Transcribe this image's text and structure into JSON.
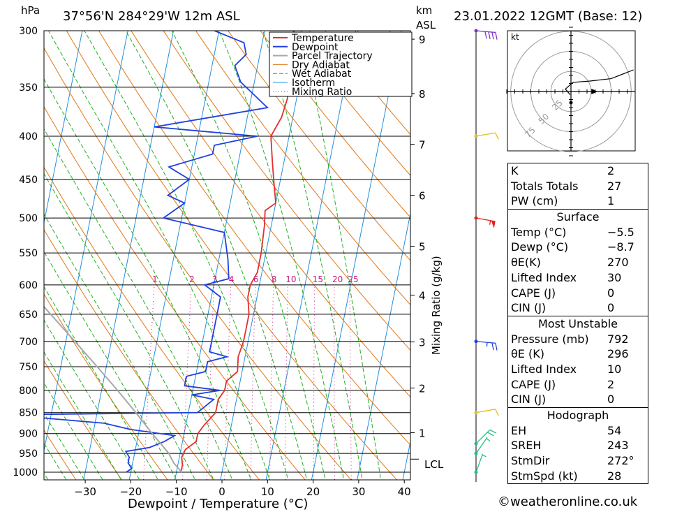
{
  "header": {
    "location": "37°56'N  284°29'W  12m  ASL",
    "datetime": "23.01.2022  12GMT  (Base: 12)",
    "pressure_unit": "hPa",
    "km_unit": "km",
    "asl_unit": "ASL"
  },
  "footer": {
    "credit": "©weatheronline.co.uk"
  },
  "chart_data": {
    "type": "line",
    "title": "",
    "xlabel": "Dewpoint / Temperature (°C)",
    "ylabel": "hPa",
    "x_ticks": [
      "-30",
      "-20",
      "-10",
      "0",
      "10",
      "20",
      "30",
      "40"
    ],
    "pressure_levels": [
      300,
      350,
      400,
      450,
      500,
      550,
      600,
      650,
      700,
      750,
      800,
      850,
      900,
      950,
      1000
    ],
    "height_km_ticks": [
      {
        "label": "9",
        "p": 307
      },
      {
        "label": "8",
        "p": 356
      },
      {
        "label": "7",
        "p": 409
      },
      {
        "label": "6",
        "p": 470
      },
      {
        "label": "5",
        "p": 540
      },
      {
        "label": "4",
        "p": 617
      },
      {
        "label": "3",
        "p": 701
      },
      {
        "label": "2",
        "p": 795
      },
      {
        "label": "1",
        "p": 898
      }
    ],
    "lcl_label": "LCL",
    "lcl_pressure": 965,
    "mixing_ratio_axis_label": "Mixing Ratio (g/kg)",
    "mixing_ratio_labels": [
      "1",
      "2",
      "3",
      "4",
      "6",
      "8",
      "10",
      "15",
      "20",
      "25"
    ],
    "legend": [
      "Temperature",
      "Dewpoint",
      "Parcel Trajectory",
      "Dry Adiabat",
      "Wet Adiabat",
      "Isotherm",
      "Mixing Ratio"
    ],
    "legend_position": "top-right",
    "colors": {
      "temperature": "#e03030",
      "dewpoint": "#2040e0",
      "parcel": "#a8a8a8",
      "dry_adiabat": "#e07818",
      "wet_adiabat": "#20b020",
      "isotherm": "#2090e0",
      "mixing_ratio": "#c81880",
      "grid": "#000000"
    },
    "series": [
      {
        "name": "Temperature",
        "points": [
          [
            -3.5,
            300
          ],
          [
            -4.0,
            320
          ],
          [
            -3.5,
            340
          ],
          [
            -2.0,
            360
          ],
          [
            -2.5,
            380
          ],
          [
            -4.0,
            400
          ],
          [
            -2.5,
            430
          ],
          [
            -1.0,
            460
          ],
          [
            0.0,
            480
          ],
          [
            -2.0,
            490
          ],
          [
            -1.5,
            510
          ],
          [
            -1.0,
            550
          ],
          [
            -1.0,
            580
          ],
          [
            -2.0,
            600
          ],
          [
            -2.0,
            620
          ],
          [
            -1.0,
            650
          ],
          [
            -1.0,
            680
          ],
          [
            -1.0,
            700
          ],
          [
            -1.5,
            730
          ],
          [
            -1.0,
            760
          ],
          [
            -3.0,
            780
          ],
          [
            -3.0,
            800
          ],
          [
            -4.0,
            820
          ],
          [
            -4.0,
            850
          ],
          [
            -6.0,
            880
          ],
          [
            -7.0,
            900
          ],
          [
            -7.0,
            920
          ],
          [
            -9.0,
            940
          ],
          [
            -9.5,
            960
          ],
          [
            -9.0,
            980
          ],
          [
            -9.0,
            1000
          ]
        ]
      },
      {
        "name": "Dewpoint",
        "points": [
          [
            -21,
            300
          ],
          [
            -14,
            310
          ],
          [
            -13,
            320
          ],
          [
            -15,
            330
          ],
          [
            -13,
            345
          ],
          [
            -6,
            370
          ],
          [
            -30,
            390
          ],
          [
            -7,
            400
          ],
          [
            -16,
            410
          ],
          [
            -16,
            420
          ],
          [
            -25,
            435
          ],
          [
            -20,
            450
          ],
          [
            -24,
            470
          ],
          [
            -20,
            480
          ],
          [
            -24,
            500
          ],
          [
            -10,
            520
          ],
          [
            -8,
            560
          ],
          [
            -7,
            590
          ],
          [
            -12,
            600
          ],
          [
            -8,
            620
          ],
          [
            -8,
            650
          ],
          [
            -8,
            700
          ],
          [
            -8,
            720
          ],
          [
            -4,
            730
          ],
          [
            -8,
            740
          ],
          [
            -8,
            760
          ],
          [
            -12,
            770
          ],
          [
            -12,
            790
          ],
          [
            -4,
            800
          ],
          [
            -10,
            810
          ],
          [
            -5,
            820
          ],
          [
            -8,
            850
          ],
          [
            -50,
            855
          ],
          [
            -28,
            875
          ],
          [
            -22,
            890
          ],
          [
            -12,
            905
          ],
          [
            -14,
            920
          ],
          [
            -17,
            935
          ],
          [
            -22,
            945
          ],
          [
            -21,
            960
          ],
          [
            -21,
            975
          ],
          [
            -20,
            990
          ],
          [
            -21,
            1000
          ]
        ]
      },
      {
        "name": "Parcel Trajectory",
        "points": [
          [
            -8.8,
            1000
          ],
          [
            -11.0,
            975
          ],
          [
            -12.5,
            950
          ],
          [
            -17.0,
            900
          ],
          [
            -21.5,
            850
          ],
          [
            -26.5,
            800
          ],
          [
            -32.0,
            750
          ],
          [
            -38.0,
            700
          ],
          [
            -44.5,
            650
          ],
          [
            -51.5,
            600
          ],
          [
            -59.0,
            550
          ],
          [
            -67.0,
            500
          ],
          [
            -75.0,
            450
          ],
          [
            -84.0,
            400
          ],
          [
            -93.0,
            350
          ],
          [
            -102.0,
            300
          ]
        ]
      }
    ],
    "barbs": [
      {
        "p": 300,
        "dir": 275,
        "speed": 40
      },
      {
        "p": 400,
        "dir": 260,
        "speed": 10
      },
      {
        "p": 500,
        "dir": 280,
        "speed": 55
      },
      {
        "p": 700,
        "dir": 275,
        "speed": 25
      },
      {
        "p": 850,
        "dir": 260,
        "speed": 10
      },
      {
        "p": 925,
        "dir": 225,
        "speed": 20
      },
      {
        "p": 950,
        "dir": 215,
        "speed": 5
      },
      {
        "p": 1000,
        "dir": 200,
        "speed": 5
      }
    ],
    "hodograph": {
      "unit_label": "kt",
      "ring_labels": [
        "25",
        "50",
        "75"
      ],
      "trace": [
        [
          -1,
          -4
        ],
        [
          -7,
          3
        ],
        [
          2,
          11
        ],
        [
          10,
          12
        ],
        [
          24,
          13
        ],
        [
          50,
          16
        ],
        [
          78,
          27
        ]
      ],
      "storm_motion_marker": [
        28,
        0
      ],
      "mean_wind_marker": [
        28,
        0
      ]
    }
  },
  "indices": {
    "rows_top": [
      {
        "label": "K",
        "value": "2"
      },
      {
        "label": "Totals Totals",
        "value": "27"
      },
      {
        "label": "PW (cm)",
        "value": "1"
      }
    ],
    "surface_title": "Surface",
    "surface": [
      {
        "label": "Temp (°C)",
        "value": "-5.5"
      },
      {
        "label": "Dewp (°C)",
        "value": "-8.7"
      },
      {
        "label": "θE(K)",
        "value": "270"
      },
      {
        "label": "Lifted Index",
        "value": "30"
      },
      {
        "label": "CAPE (J)",
        "value": "0"
      },
      {
        "label": "CIN (J)",
        "value": "0"
      }
    ],
    "mu_title": "Most Unstable",
    "most_unstable": [
      {
        "label": "Pressure (mb)",
        "value": "792"
      },
      {
        "label": "θE (K)",
        "value": "296"
      },
      {
        "label": "Lifted Index",
        "value": "10"
      },
      {
        "label": "CAPE (J)",
        "value": "2"
      },
      {
        "label": "CIN (J)",
        "value": "0"
      }
    ],
    "hodo_title": "Hodograph",
    "hodograph": [
      {
        "label": "EH",
        "value": "54"
      },
      {
        "label": "SREH",
        "value": "243"
      },
      {
        "label": "StmDir",
        "value": "272°"
      },
      {
        "label": "StmSpd (kt)",
        "value": "28"
      }
    ]
  }
}
